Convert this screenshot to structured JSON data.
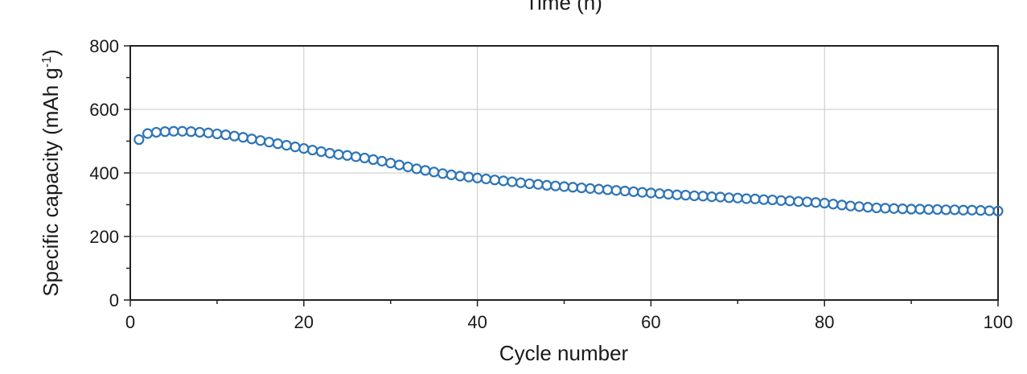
{
  "chart_data": {
    "type": "scatter",
    "top_label": "Time (h)",
    "xlabel": "Cycle number",
    "ylabel_main": "Specific capacity (mAh g",
    "ylabel_sup": "-1",
    "ylabel_end": ")",
    "xlim": [
      0,
      100
    ],
    "ylim": [
      0,
      800
    ],
    "x_ticks": [
      0,
      20,
      40,
      60,
      80,
      100
    ],
    "y_ticks": [
      0,
      200,
      400,
      600,
      800
    ],
    "grid": true,
    "marker": "open-circle",
    "series_color": "#2E75B6",
    "series": [
      {
        "x": [
          1,
          2,
          3,
          4,
          5,
          6,
          7,
          8,
          9,
          10,
          11,
          12,
          13,
          14,
          15,
          16,
          17,
          18,
          19,
          20,
          21,
          22,
          23,
          24,
          25,
          26,
          27,
          28,
          29,
          30,
          31,
          32,
          33,
          34,
          35,
          36,
          37,
          38,
          39,
          40,
          41,
          42,
          43,
          44,
          45,
          46,
          47,
          48,
          49,
          50,
          51,
          52,
          53,
          54,
          55,
          56,
          57,
          58,
          59,
          60,
          61,
          62,
          63,
          64,
          65,
          66,
          67,
          68,
          69,
          70,
          71,
          72,
          73,
          74,
          75,
          76,
          77,
          78,
          79,
          80,
          81,
          82,
          83,
          84,
          85,
          86,
          87,
          88,
          89,
          90,
          91,
          92,
          93,
          94,
          95,
          96,
          97,
          98,
          99,
          100
        ],
        "y": [
          505,
          524,
          528,
          530,
          531,
          531,
          530,
          528,
          526,
          523,
          520,
          516,
          512,
          507,
          502,
          497,
          492,
          487,
          482,
          477,
          472,
          467,
          462,
          458,
          455,
          451,
          447,
          442,
          437,
          431,
          425,
          419,
          413,
          408,
          403,
          398,
          394,
          390,
          387,
          384,
          381,
          378,
          375,
          372,
          369,
          366,
          364,
          361,
          359,
          357,
          355,
          353,
          351,
          349,
          347,
          345,
          343,
          341,
          339,
          337,
          335,
          333,
          331,
          330,
          328,
          327,
          325,
          324,
          322,
          321,
          319,
          318,
          316,
          315,
          313,
          312,
          310,
          309,
          307,
          305,
          302,
          299,
          296,
          294,
          292,
          290,
          289,
          288,
          287,
          286,
          286,
          285,
          285,
          284,
          284,
          283,
          283,
          282,
          281,
          280
        ]
      }
    ]
  }
}
